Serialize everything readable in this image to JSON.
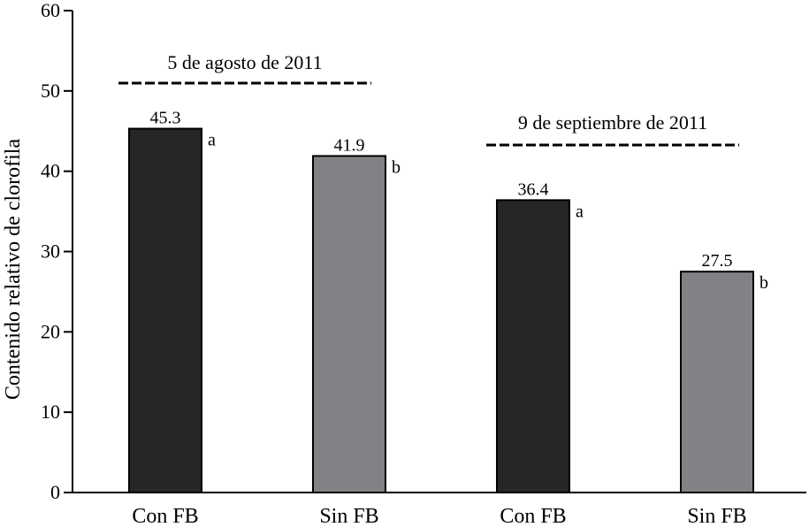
{
  "chart_data": {
    "type": "bar",
    "ylabel": "Contenido relativo de clorofila",
    "ylim": [
      0,
      60
    ],
    "yticks": [
      0,
      10,
      20,
      30,
      40,
      50,
      60
    ],
    "grid": false,
    "categories": [
      "Con FB",
      "Sin FB",
      "Con FB",
      "Sin FB"
    ],
    "values": [
      45.3,
      41.9,
      36.4,
      27.5
    ],
    "value_labels": [
      "45.3",
      "41.9",
      "36.4",
      "27.5"
    ],
    "significance_letters": [
      "a",
      "b",
      "a",
      "b"
    ],
    "bar_colors": [
      "#262626",
      "#808285",
      "#262626",
      "#808285"
    ],
    "groups": [
      {
        "label": "5 de agosto de 2011",
        "bars": [
          0,
          1
        ]
      },
      {
        "label": "9 de septiembre de 2011",
        "bars": [
          2,
          3
        ]
      }
    ]
  }
}
